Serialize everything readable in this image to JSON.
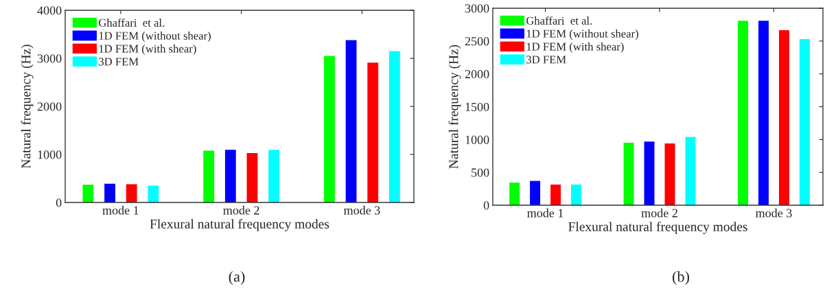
{
  "chart_data": [
    {
      "type": "bar",
      "xlabel": "Flexural natural frequency modes",
      "ylabel": "Natural frequency (Hz)",
      "categories": [
        "mode 1",
        "mode 2",
        "mode 3"
      ],
      "series": [
        {
          "name": "Ghaffari  et al.",
          "color": "#00ff00",
          "values": [
            370,
            1080,
            3050
          ]
        },
        {
          "name": "1D FEM (without shear)",
          "color": "#0000ff",
          "values": [
            390,
            1095,
            3380
          ]
        },
        {
          "name": "1D FEM (with shear)",
          "color": "#ff0000",
          "values": [
            380,
            1030,
            2910
          ]
        },
        {
          "name": "3D FEM",
          "color": "#00ffff",
          "values": [
            350,
            1095,
            3150
          ]
        }
      ],
      "ylim": [
        0,
        4000
      ],
      "yticks": [
        0,
        1000,
        2000,
        3000,
        4000
      ],
      "legend": "top left",
      "grid": false,
      "annotations": [
        "(a)"
      ]
    },
    {
      "type": "bar",
      "xlabel": "Flexural natural frequency modes",
      "ylabel": "Natural frequency (Hz)",
      "categories": [
        "mode 1",
        "mode 2",
        "mode 3"
      ],
      "series": [
        {
          "name": "Ghaffari  et al.",
          "color": "#00ff00",
          "values": [
            345,
            950,
            2810
          ]
        },
        {
          "name": "1D FEM (without shear)",
          "color": "#0000ff",
          "values": [
            370,
            970,
            2810
          ]
        },
        {
          "name": "1D FEM (with shear)",
          "color": "#ff0000",
          "values": [
            315,
            940,
            2665
          ]
        },
        {
          "name": "3D FEM",
          "color": "#00ffff",
          "values": [
            315,
            1040,
            2530
          ]
        }
      ],
      "ylim": [
        0,
        3000
      ],
      "yticks": [
        0,
        500,
        1000,
        1500,
        2000,
        2500,
        3000
      ],
      "legend": "top left",
      "grid": false,
      "annotations": [
        "(b)"
      ]
    }
  ]
}
